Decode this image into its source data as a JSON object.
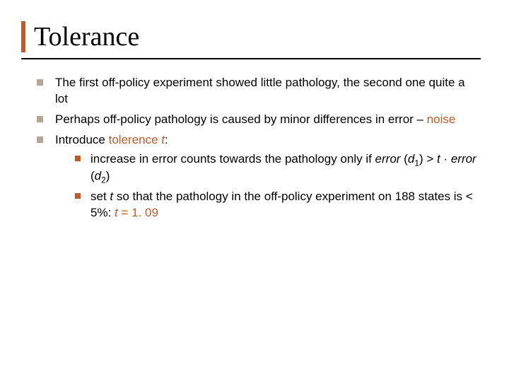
{
  "accent_color": "#c05a28",
  "title_border_color": "#c05a28",
  "sub_bullet_color": "#c05a28",
  "title": "Tolerance",
  "bullets": [
    {
      "text": "The first off-policy experiment showed little pathology, the second one quite a lot"
    },
    {
      "prefix": "Perhaps off-policy pathology is caused by minor differences in error – ",
      "accent": "noise"
    },
    {
      "prefix": "Introduce ",
      "accent": "tolerence ",
      "accent_ital": "t",
      "suffix": ":",
      "sub": [
        {
          "p1": "increase in error counts towards the pathology only if ",
          "ital1": "error",
          "p2": " (",
          "ital2": "d",
          "sub1": "1",
          "p3": ") > ",
          "ital3": "t",
          "p4": " · ",
          "ital4": "error",
          "p5": " (",
          "ital5": "d",
          "sub2": "2",
          "p6": ")"
        },
        {
          "p1": "set ",
          "ital1": "t",
          "p2": " so that the pathology in the off-policy experiment on 188 states is < 5%: ",
          "accent_ital": "t",
          "accent_rest": " = 1. 09"
        }
      ]
    }
  ]
}
